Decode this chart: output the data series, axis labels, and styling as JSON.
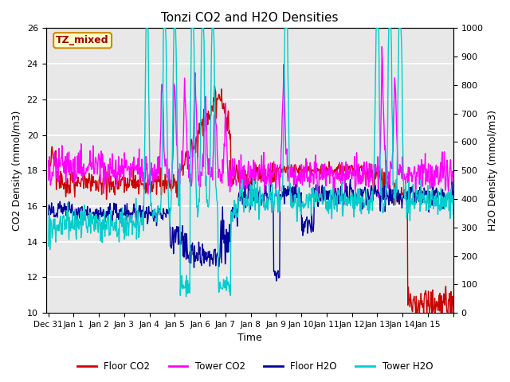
{
  "title": "Tonzi CO2 and H2O Densities",
  "xlabel": "Time",
  "ylabel_left": "CO2 Density (mmol/m3)",
  "ylabel_right": "H2O Density (mmol/m3)",
  "ylim_left": [
    10,
    26
  ],
  "ylim_right": [
    0,
    1000
  ],
  "yticks_left": [
    10,
    12,
    14,
    16,
    18,
    20,
    22,
    24,
    26
  ],
  "yticks_right": [
    0,
    100,
    200,
    300,
    400,
    500,
    600,
    700,
    800,
    900,
    1000
  ],
  "annotation_text": "TZ_mixed",
  "colors": {
    "floor_co2": "#cc0000",
    "tower_co2": "#ff00ff",
    "floor_h2o": "#000099",
    "tower_h2o": "#00cccc"
  },
  "legend_labels": [
    "Floor CO2",
    "Tower CO2",
    "Floor H2O",
    "Tower H2O"
  ],
  "plot_background": "#e8e8e8",
  "linewidth": 1.0,
  "title_fontsize": 11,
  "label_fontsize": 9,
  "tick_fontsize": 8
}
